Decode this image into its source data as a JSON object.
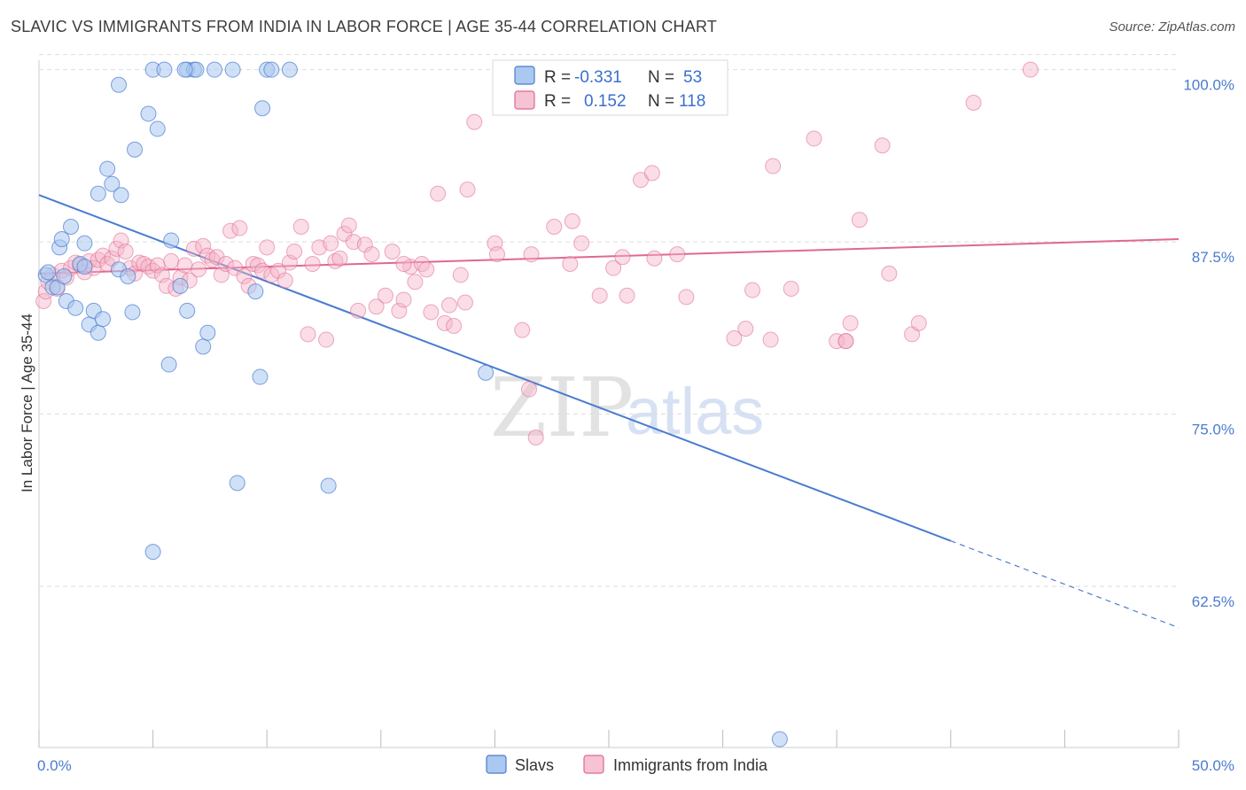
{
  "title": "SLAVIC VS IMMIGRANTS FROM INDIA IN LABOR FORCE | AGE 35-44 CORRELATION CHART",
  "source": "Source: ZipAtlas.com",
  "watermark": {
    "part1": "ZIP",
    "part2": "atlas"
  },
  "colors": {
    "blue": "#4a7bd0",
    "blue_fill": "#aac8f0",
    "pink": "#e06890",
    "pink_fill": "#f5b3c8",
    "grid": "#dddddd"
  },
  "legend": {
    "r_label": "R =",
    "n_label": "N =",
    "rows": [
      {
        "series": "Slavs",
        "r": "-0.331",
        "n": "53"
      },
      {
        "series": "Immigrants from India",
        "r": "0.152",
        "n": "118"
      }
    ]
  },
  "chart_data": {
    "type": "scatter",
    "xlabel": "",
    "ylabel": "In Labor Force | Age 35-44",
    "xlim": [
      0,
      50
    ],
    "ylim": [
      50.8,
      101.2
    ],
    "x_tick_labels": [
      "0.0%",
      "50.0%"
    ],
    "y_ticks": [
      62.5,
      75.0,
      87.5,
      100.0
    ],
    "y_tick_labels": [
      "62.5%",
      "75.0%",
      "87.5%",
      "100.0%"
    ],
    "grid": true,
    "series": [
      {
        "name": "Slavs",
        "r": -0.331,
        "n": 53,
        "trend": {
          "x0": 0,
          "y0": 90.9,
          "x1": 40,
          "y1": 65.8,
          "dash_to_x": 50,
          "dash_to_y": 59.5
        },
        "points": [
          [
            0.3,
            85.1
          ],
          [
            0.4,
            85.3
          ],
          [
            0.6,
            84.2
          ],
          [
            0.8,
            84.2
          ],
          [
            0.9,
            87.1
          ],
          [
            1.0,
            87.7
          ],
          [
            1.2,
            83.2
          ],
          [
            1.4,
            88.6
          ],
          [
            1.6,
            82.7
          ],
          [
            1.8,
            85.9
          ],
          [
            2.0,
            85.7
          ],
          [
            2.0,
            87.4
          ],
          [
            2.2,
            81.5
          ],
          [
            2.4,
            82.5
          ],
          [
            2.6,
            80.9
          ],
          [
            2.8,
            81.9
          ],
          [
            2.6,
            91.0
          ],
          [
            3.0,
            92.8
          ],
          [
            3.2,
            91.7
          ],
          [
            3.5,
            85.5
          ],
          [
            3.6,
            90.9
          ],
          [
            3.9,
            85.0
          ],
          [
            4.1,
            82.4
          ],
          [
            4.2,
            94.2
          ],
          [
            3.5,
            98.9
          ],
          [
            4.8,
            96.8
          ],
          [
            5.0,
            100.0
          ],
          [
            5.2,
            95.7
          ],
          [
            5.5,
            100.0
          ],
          [
            5.7,
            78.6
          ],
          [
            5.8,
            87.6
          ],
          [
            6.2,
            84.3
          ],
          [
            6.5,
            100.0
          ],
          [
            6.5,
            82.5
          ],
          [
            6.8,
            100.0
          ],
          [
            6.9,
            100.0
          ],
          [
            7.2,
            79.9
          ],
          [
            7.4,
            80.9
          ],
          [
            7.7,
            100.0
          ],
          [
            8.5,
            100.0
          ],
          [
            8.7,
            70.0
          ],
          [
            9.5,
            83.9
          ],
          [
            9.7,
            77.7
          ],
          [
            9.8,
            97.2
          ],
          [
            10.0,
            100.0
          ],
          [
            10.2,
            100.0
          ],
          [
            11.0,
            100.0
          ],
          [
            12.7,
            69.8
          ],
          [
            19.6,
            78.0
          ],
          [
            5.0,
            65.0
          ],
          [
            32.5,
            51.4
          ],
          [
            1.1,
            85.0
          ],
          [
            6.4,
            100.0
          ]
        ]
      },
      {
        "name": "Immigrants from India",
        "r": 0.152,
        "n": 118,
        "trend": {
          "x0": 0,
          "y0": 85.2,
          "x1": 50,
          "y1": 87.7
        },
        "points": [
          [
            0.2,
            83.2
          ],
          [
            0.3,
            83.9
          ],
          [
            0.4,
            84.6
          ],
          [
            0.6,
            85.1
          ],
          [
            0.8,
            84.1
          ],
          [
            1.0,
            85.4
          ],
          [
            1.2,
            84.9
          ],
          [
            1.4,
            85.6
          ],
          [
            1.6,
            86.0
          ],
          [
            1.8,
            85.8
          ],
          [
            2.0,
            85.3
          ],
          [
            2.2,
            86.1
          ],
          [
            2.4,
            85.6
          ],
          [
            2.6,
            86.2
          ],
          [
            2.8,
            86.5
          ],
          [
            3.0,
            85.9
          ],
          [
            3.2,
            86.3
          ],
          [
            3.4,
            87.0
          ],
          [
            3.6,
            87.6
          ],
          [
            3.8,
            86.8
          ],
          [
            4.0,
            85.6
          ],
          [
            4.2,
            85.2
          ],
          [
            4.4,
            86.0
          ],
          [
            4.6,
            85.9
          ],
          [
            4.8,
            85.7
          ],
          [
            5.0,
            85.4
          ],
          [
            5.2,
            85.8
          ],
          [
            5.4,
            85.1
          ],
          [
            5.6,
            84.3
          ],
          [
            5.8,
            86.1
          ],
          [
            6.0,
            84.1
          ],
          [
            6.2,
            84.9
          ],
          [
            6.4,
            85.8
          ],
          [
            6.6,
            84.7
          ],
          [
            6.8,
            87.0
          ],
          [
            7.0,
            85.5
          ],
          [
            7.2,
            87.2
          ],
          [
            7.4,
            86.5
          ],
          [
            7.6,
            86.2
          ],
          [
            7.8,
            86.4
          ],
          [
            8.0,
            85.1
          ],
          [
            8.2,
            85.9
          ],
          [
            8.4,
            88.3
          ],
          [
            8.6,
            85.6
          ],
          [
            8.8,
            88.5
          ],
          [
            9.0,
            85.0
          ],
          [
            9.2,
            84.3
          ],
          [
            9.4,
            85.9
          ],
          [
            9.6,
            85.8
          ],
          [
            9.8,
            85.4
          ],
          [
            10.0,
            87.1
          ],
          [
            10.2,
            85.1
          ],
          [
            10.5,
            85.4
          ],
          [
            10.8,
            84.7
          ],
          [
            11.0,
            86.0
          ],
          [
            11.2,
            86.8
          ],
          [
            11.5,
            88.6
          ],
          [
            11.8,
            80.8
          ],
          [
            12.0,
            85.9
          ],
          [
            12.3,
            87.1
          ],
          [
            12.6,
            80.4
          ],
          [
            12.8,
            87.4
          ],
          [
            13.0,
            86.1
          ],
          [
            13.2,
            86.3
          ],
          [
            13.4,
            88.1
          ],
          [
            13.6,
            88.7
          ],
          [
            13.8,
            87.5
          ],
          [
            14.0,
            82.5
          ],
          [
            14.3,
            87.3
          ],
          [
            14.6,
            86.6
          ],
          [
            14.8,
            82.8
          ],
          [
            15.2,
            83.6
          ],
          [
            15.5,
            86.8
          ],
          [
            15.8,
            82.5
          ],
          [
            16.0,
            83.3
          ],
          [
            16.3,
            85.7
          ],
          [
            16.5,
            84.6
          ],
          [
            16.8,
            85.9
          ],
          [
            17.0,
            85.5
          ],
          [
            17.2,
            82.4
          ],
          [
            17.5,
            91.0
          ],
          [
            17.8,
            81.6
          ],
          [
            18.0,
            82.9
          ],
          [
            18.2,
            81.4
          ],
          [
            18.5,
            85.1
          ],
          [
            18.7,
            83.1
          ],
          [
            18.8,
            91.3
          ],
          [
            19.1,
            96.2
          ],
          [
            20.0,
            87.4
          ],
          [
            20.1,
            86.6
          ],
          [
            21.2,
            81.1
          ],
          [
            21.5,
            76.8
          ],
          [
            21.6,
            86.6
          ],
          [
            21.8,
            73.3
          ],
          [
            22.6,
            88.6
          ],
          [
            23.3,
            85.9
          ],
          [
            23.4,
            89.0
          ],
          [
            23.8,
            87.4
          ],
          [
            24.6,
            83.6
          ],
          [
            25.2,
            85.6
          ],
          [
            25.6,
            86.4
          ],
          [
            25.8,
            83.6
          ],
          [
            26.4,
            92.0
          ],
          [
            26.9,
            92.5
          ],
          [
            27.0,
            86.3
          ],
          [
            28.0,
            86.6
          ],
          [
            28.4,
            83.5
          ],
          [
            30.5,
            80.5
          ],
          [
            31.0,
            81.2
          ],
          [
            31.3,
            84.0
          ],
          [
            32.1,
            80.4
          ],
          [
            32.2,
            93.0
          ],
          [
            33.0,
            84.1
          ],
          [
            34.0,
            95.0
          ],
          [
            35.0,
            80.3
          ],
          [
            35.4,
            80.3
          ],
          [
            35.6,
            81.6
          ],
          [
            36.0,
            89.1
          ],
          [
            37.0,
            94.5
          ],
          [
            37.3,
            85.2
          ],
          [
            38.3,
            80.8
          ],
          [
            38.6,
            81.6
          ],
          [
            41.0,
            97.6
          ],
          [
            43.5,
            100.0
          ],
          [
            35.4,
            80.3
          ],
          [
            16.0,
            85.9
          ]
        ]
      }
    ]
  }
}
